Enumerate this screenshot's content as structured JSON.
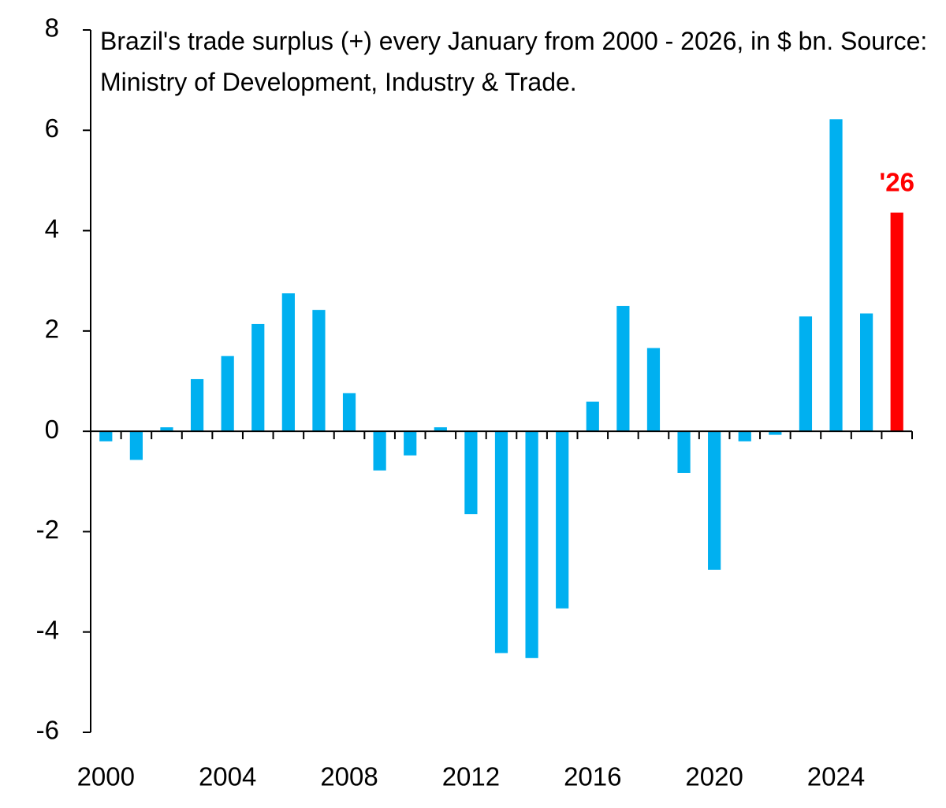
{
  "chart_data": {
    "type": "bar",
    "title": "Brazil's trade surplus (+) every January from 2000 - 2026, in $ bn. Source: Ministry of Development, Industry & Trade.",
    "x": [
      2000,
      2001,
      2002,
      2003,
      2004,
      2005,
      2006,
      2007,
      2008,
      2009,
      2010,
      2011,
      2012,
      2013,
      2014,
      2015,
      2016,
      2017,
      2018,
      2019,
      2020,
      2021,
      2022,
      2023,
      2024,
      2025,
      2026
    ],
    "values": [
      -0.2,
      -0.57,
      0.08,
      1.04,
      1.5,
      2.14,
      2.75,
      2.42,
      0.76,
      -0.78,
      -0.48,
      0.08,
      -1.65,
      -4.42,
      -4.52,
      -3.53,
      0.59,
      2.5,
      1.66,
      -0.83,
      -2.76,
      -0.2,
      -0.07,
      2.29,
      6.22,
      2.35,
      4.36
    ],
    "colors": [
      "#00b0f0",
      "#00b0f0",
      "#00b0f0",
      "#00b0f0",
      "#00b0f0",
      "#00b0f0",
      "#00b0f0",
      "#00b0f0",
      "#00b0f0",
      "#00b0f0",
      "#00b0f0",
      "#00b0f0",
      "#00b0f0",
      "#00b0f0",
      "#00b0f0",
      "#00b0f0",
      "#00b0f0",
      "#00b0f0",
      "#00b0f0",
      "#00b0f0",
      "#00b0f0",
      "#00b0f0",
      "#00b0f0",
      "#00b0f0",
      "#00b0f0",
      "#00b0f0",
      "#ff0000"
    ],
    "xlim": [
      1999.5,
      2026.5
    ],
    "xticks": [
      2000,
      2004,
      2008,
      2012,
      2016,
      2020,
      2024
    ],
    "ylim": [
      -6,
      8
    ],
    "yticks": [
      -6,
      -4,
      -2,
      0,
      2,
      4,
      6,
      8
    ],
    "grid": false,
    "annotations": [
      {
        "text": "'26",
        "x": 2026,
        "color": "#ff0000"
      }
    ]
  }
}
